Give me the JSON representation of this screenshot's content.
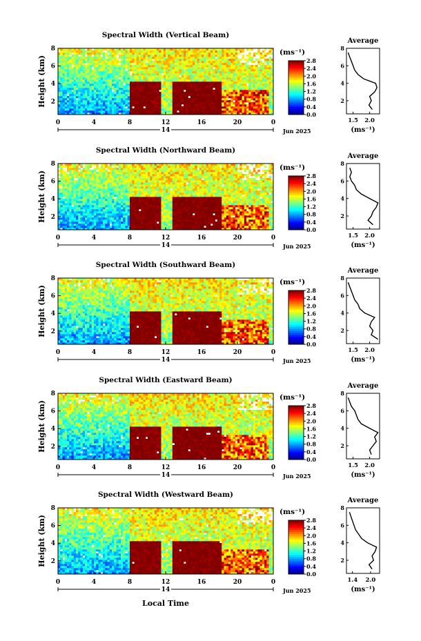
{
  "chart_data": {
    "type": "heatmap",
    "figure_xlabel": "Local Time",
    "time_ticks": [
      "0",
      "4",
      "8",
      "12",
      "16",
      "20",
      "0"
    ],
    "day_label": "14",
    "month_label": "Jun 2025",
    "height_ticks": [
      "2",
      "4",
      "6",
      "8"
    ],
    "ylabel": "Height (km)",
    "colorbar": {
      "unit": "(ms⁻¹)",
      "ticks": [
        "0.0",
        "0.4",
        "0.8",
        "1.2",
        "1.6",
        "2.0",
        "2.4",
        "2.8"
      ],
      "range": [
        0.0,
        2.8
      ],
      "colormap": "jet"
    },
    "profile_title": "Average",
    "profile_xlabel": "(ms⁻¹)",
    "panels": [
      {
        "title": "Spectral Width (Vertical Beam)",
        "profile_xticks": [
          "1.5",
          "2.0"
        ],
        "profile_xlim": [
          1.3,
          2.3
        ],
        "profile": {
          "height": [
            1.0,
            1.5,
            2.0,
            2.5,
            3.0,
            3.5,
            4.0,
            4.5,
            5.0,
            5.5,
            6.0,
            6.5,
            7.0,
            7.5
          ],
          "value": [
            2.08,
            1.98,
            2.05,
            2.0,
            2.15,
            2.22,
            2.18,
            1.82,
            1.65,
            1.55,
            1.5,
            1.45,
            1.4,
            1.35
          ]
        }
      },
      {
        "title": "Spectral Width (Northward Beam)",
        "profile_xticks": [
          "1.5",
          "2.0"
        ],
        "profile_xlim": [
          1.3,
          2.3
        ],
        "profile": {
          "height": [
            1.0,
            1.5,
            2.0,
            2.5,
            3.0,
            3.5,
            4.0,
            4.5,
            5.0,
            5.5,
            6.0,
            6.5,
            7.0,
            7.5
          ],
          "value": [
            2.1,
            1.95,
            2.05,
            2.1,
            2.2,
            2.25,
            2.0,
            1.75,
            1.6,
            1.55,
            1.45,
            1.4,
            1.45,
            1.4
          ]
        }
      },
      {
        "title": "Spectral Width (Southward Beam)",
        "profile_xticks": [
          "1.5",
          "2.0"
        ],
        "profile_xlim": [
          1.3,
          2.3
        ],
        "profile": {
          "height": [
            1.0,
            1.5,
            2.0,
            2.5,
            3.0,
            3.5,
            4.0,
            4.5,
            5.0,
            5.5,
            6.0,
            6.5,
            7.0,
            7.5
          ],
          "value": [
            2.25,
            2.05,
            2.1,
            2.0,
            2.05,
            2.15,
            1.85,
            1.7,
            1.65,
            1.55,
            1.5,
            1.45,
            1.4,
            1.35
          ]
        }
      },
      {
        "title": "Spectral Width (Eastward Beam)",
        "profile_xticks": [
          "1.5",
          "2.0"
        ],
        "profile_xlim": [
          1.3,
          2.3
        ],
        "profile": {
          "height": [
            1.0,
            1.5,
            2.0,
            2.5,
            3.0,
            3.5,
            4.0,
            4.5,
            5.0,
            5.5,
            6.0,
            6.5,
            7.0,
            7.5
          ],
          "value": [
            2.05,
            2.0,
            2.1,
            2.2,
            2.15,
            2.25,
            2.0,
            1.75,
            1.65,
            1.6,
            1.55,
            1.45,
            1.4,
            1.35
          ]
        }
      },
      {
        "title": "Spectral Width (Westward Beam)",
        "profile_xticks": [
          "1.4",
          "2.0"
        ],
        "profile_xlim": [
          1.2,
          2.3
        ],
        "profile": {
          "height": [
            1.0,
            1.5,
            2.0,
            2.5,
            3.0,
            3.5,
            4.0,
            4.5,
            5.0,
            5.5,
            6.0,
            6.5,
            7.0,
            7.5
          ],
          "value": [
            2.05,
            1.95,
            2.1,
            2.05,
            2.15,
            2.2,
            1.9,
            1.7,
            1.6,
            1.5,
            1.45,
            1.4,
            1.35,
            1.3
          ]
        }
      }
    ]
  }
}
